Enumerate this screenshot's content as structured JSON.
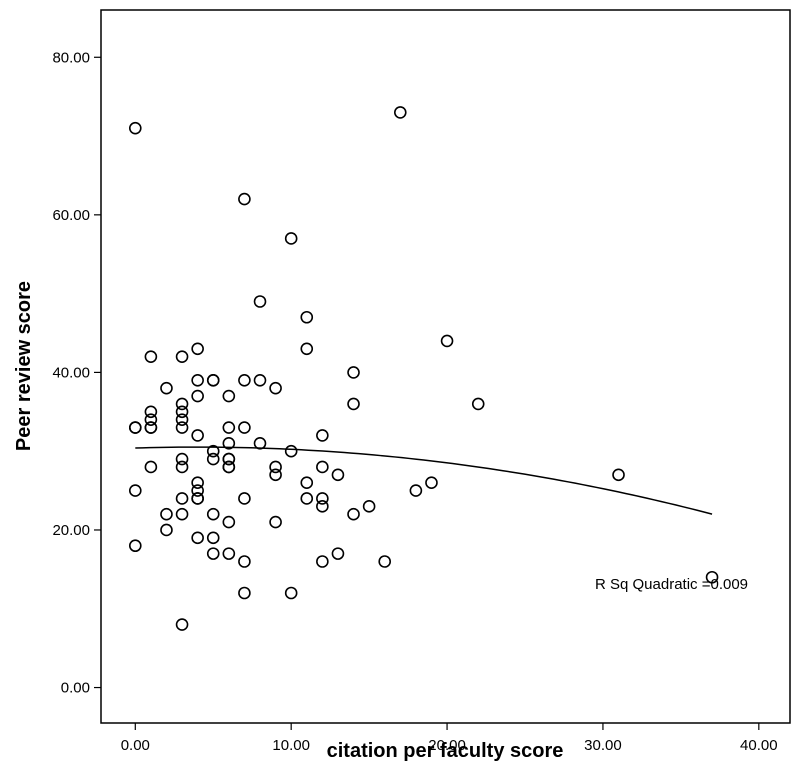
{
  "chart_data": {
    "type": "scatter",
    "xlabel": "citation per faculty score",
    "ylabel": "Peer review score",
    "xlim": [
      -2.2,
      42
    ],
    "ylim": [
      -4.5,
      86
    ],
    "xticks": [
      0,
      10,
      20,
      30,
      40
    ],
    "yticks": [
      0,
      20,
      40,
      60,
      80
    ],
    "xtick_labels": [
      "0.00",
      "10.00",
      "20.00",
      "30.00",
      "40.00"
    ],
    "ytick_labels": [
      "0.00",
      "20.00",
      "40.00",
      "60.00",
      "80.00"
    ],
    "grid": false,
    "points": [
      [
        0,
        71
      ],
      [
        0,
        33
      ],
      [
        0,
        33
      ],
      [
        0,
        25
      ],
      [
        0,
        18
      ],
      [
        1,
        42
      ],
      [
        1,
        35
      ],
      [
        1,
        34
      ],
      [
        1,
        33
      ],
      [
        1,
        33
      ],
      [
        1,
        28
      ],
      [
        2,
        38
      ],
      [
        2,
        22
      ],
      [
        2,
        20
      ],
      [
        3,
        42
      ],
      [
        3,
        36
      ],
      [
        3,
        35
      ],
      [
        3,
        34
      ],
      [
        3,
        33
      ],
      [
        3,
        29
      ],
      [
        3,
        28
      ],
      [
        3,
        24
      ],
      [
        3,
        22
      ],
      [
        3,
        8
      ],
      [
        4,
        43
      ],
      [
        4,
        39
      ],
      [
        4,
        37
      ],
      [
        4,
        32
      ],
      [
        4,
        26
      ],
      [
        4,
        25
      ],
      [
        4,
        24
      ],
      [
        4,
        24
      ],
      [
        4,
        19
      ],
      [
        5,
        39
      ],
      [
        5,
        39
      ],
      [
        5,
        30
      ],
      [
        5,
        29
      ],
      [
        5,
        22
      ],
      [
        5,
        19
      ],
      [
        5,
        17
      ],
      [
        6,
        37
      ],
      [
        6,
        33
      ],
      [
        6,
        31
      ],
      [
        6,
        29
      ],
      [
        6,
        29
      ],
      [
        6,
        28
      ],
      [
        6,
        28
      ],
      [
        6,
        21
      ],
      [
        6,
        17
      ],
      [
        7,
        62
      ],
      [
        7,
        39
      ],
      [
        7,
        33
      ],
      [
        7,
        24
      ],
      [
        7,
        16
      ],
      [
        7,
        12
      ],
      [
        8,
        49
      ],
      [
        8,
        39
      ],
      [
        8,
        31
      ],
      [
        9,
        38
      ],
      [
        9,
        28
      ],
      [
        9,
        27
      ],
      [
        9,
        21
      ],
      [
        10,
        57
      ],
      [
        10,
        30
      ],
      [
        10,
        12
      ],
      [
        11,
        47
      ],
      [
        11,
        43
      ],
      [
        11,
        26
      ],
      [
        11,
        24
      ],
      [
        12,
        32
      ],
      [
        12,
        28
      ],
      [
        12,
        24
      ],
      [
        12,
        23
      ],
      [
        12,
        16
      ],
      [
        13,
        27
      ],
      [
        13,
        17
      ],
      [
        14,
        40
      ],
      [
        14,
        36
      ],
      [
        14,
        22
      ],
      [
        15,
        23
      ],
      [
        16,
        16
      ],
      [
        17,
        73
      ],
      [
        18,
        25
      ],
      [
        19,
        26
      ],
      [
        20,
        44
      ],
      [
        22,
        36
      ],
      [
        31,
        27
      ],
      [
        37,
        14
      ]
    ],
    "fit": {
      "type": "quadratic",
      "coefficients": [
        30.4,
        0.062,
        -0.0078
      ],
      "x_range": [
        0,
        37
      ]
    },
    "annotation": "R Sq Quadratic =0.009"
  }
}
